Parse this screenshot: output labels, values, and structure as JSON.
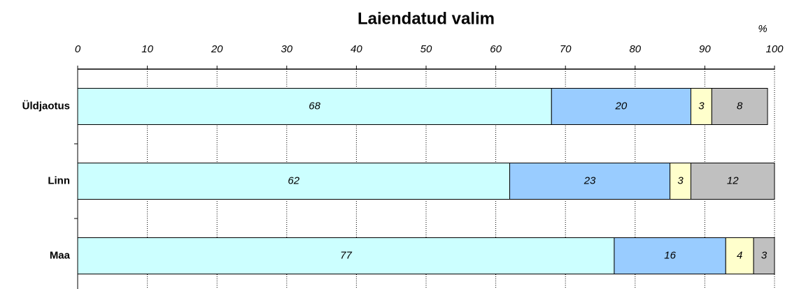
{
  "chart_data": {
    "type": "stacked-barh",
    "title": "Laiendatud valim",
    "x_label": "%",
    "categories": [
      "Üldjaotus",
      "Linn",
      "Maa"
    ],
    "series": [
      {
        "color": "#ccffff",
        "values": [
          68,
          62,
          77
        ]
      },
      {
        "color": "#99ccff",
        "values": [
          20,
          23,
          16
        ]
      },
      {
        "color": "#ffffcc",
        "values": [
          3,
          3,
          4
        ]
      },
      {
        "color": "#c0c0c0",
        "values": [
          8,
          12,
          3
        ]
      }
    ],
    "xlim": [
      0,
      100
    ],
    "xticks": [
      0,
      10,
      20,
      30,
      40,
      50,
      60,
      70,
      80,
      90,
      100
    ],
    "grid": true
  }
}
